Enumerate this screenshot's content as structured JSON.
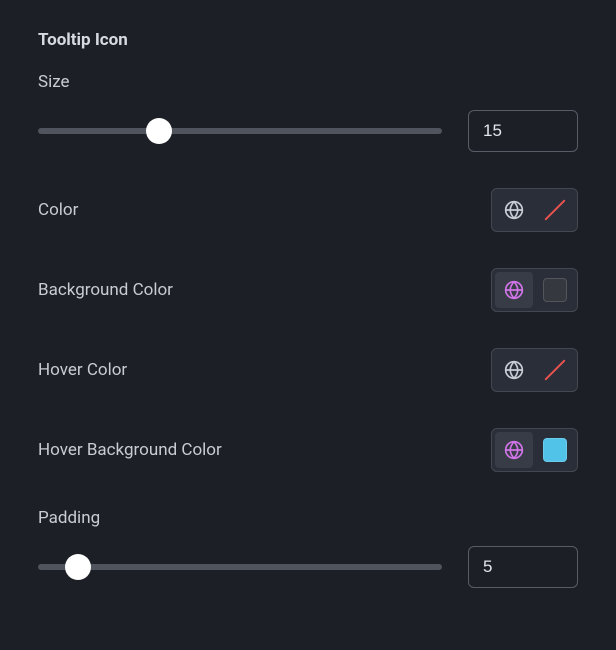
{
  "section_title": "Tooltip Icon",
  "size": {
    "label": "Size",
    "value": "15",
    "slider_percent": 30,
    "track_color": "#50545c",
    "thumb_color": "#ffffff"
  },
  "color": {
    "label": "Color",
    "globe_active": false,
    "globe_color": "#c8ccd4",
    "swatch_type": "none"
  },
  "background_color": {
    "label": "Background Color",
    "globe_active": true,
    "globe_color": "#d074e8",
    "swatch_type": "solid",
    "swatch_color": "#35383f"
  },
  "hover_color": {
    "label": "Hover Color",
    "globe_active": false,
    "globe_color": "#c8ccd4",
    "swatch_type": "none"
  },
  "hover_background_color": {
    "label": "Hover Background Color",
    "globe_active": true,
    "globe_color": "#d074e8",
    "swatch_type": "solid",
    "swatch_color": "#52c3e8"
  },
  "padding": {
    "label": "Padding",
    "value": "5",
    "slider_percent": 10,
    "track_color": "#50545c",
    "thumb_color": "#ffffff"
  }
}
